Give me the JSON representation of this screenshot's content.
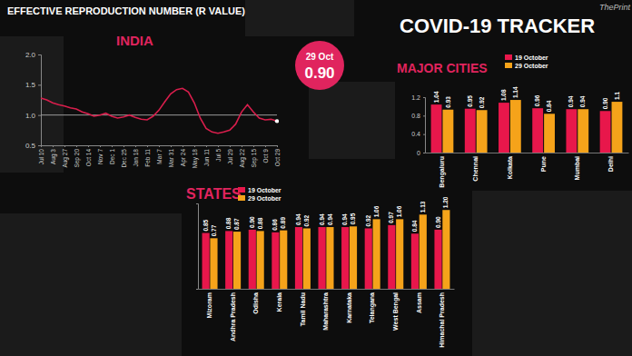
{
  "header": {
    "title": "COVID-19 TRACKER",
    "logo": "ThePrint"
  },
  "chart_data": [
    {
      "type": "line",
      "title": "EFFECTIVE REPRODUCTION NUMBER (R VALUE)",
      "subtitle": "INDIA",
      "categories": [
        "Jul 10",
        null,
        "Aug 3",
        null,
        "Aug 27",
        null,
        "Sep 20",
        null,
        "Oct 14",
        null,
        "Nov 7",
        null,
        "Dec 1",
        null,
        "Dec 25",
        null,
        "Jan 18",
        null,
        "Feb 11",
        null,
        "Mar 7",
        null,
        "Mar 31",
        null,
        "Apr 24",
        null,
        "May 18",
        null,
        "Jun 11",
        null,
        "Jul 5",
        null,
        "Jul 29",
        null,
        "Aug 22",
        null,
        "Sep 15",
        null,
        "Oct 9",
        null,
        "Oct 29"
      ],
      "values": [
        1.28,
        1.25,
        1.2,
        1.17,
        1.15,
        1.12,
        1.1,
        1.05,
        1.02,
        0.98,
        1.0,
        1.03,
        0.98,
        0.95,
        0.97,
        1.0,
        0.96,
        0.93,
        0.92,
        0.98,
        1.08,
        1.22,
        1.35,
        1.42,
        1.44,
        1.38,
        1.2,
        0.95,
        0.78,
        0.72,
        0.7,
        0.72,
        0.75,
        0.85,
        1.05,
        1.17,
        1.05,
        0.95,
        0.92,
        0.93,
        0.9
      ],
      "color": "#d81e4c",
      "ylim": [
        0.5,
        2
      ],
      "yticks": [
        0.5,
        {
          "value": 1,
          "label": "1.0"
        },
        1.5,
        {
          "value": 2,
          "label": "2.0"
        }
      ],
      "threshold": 1,
      "callout": {
        "text": "29 Oct",
        "value": 0.9,
        "label": "0.90"
      },
      "grid": false
    },
    {
      "type": "bar",
      "subtitle": "MAJOR CITIES",
      "categories": [
        "Bengaluru",
        "Chennai",
        "Kolkata",
        "Pune",
        "Mumbai",
        "Delhi"
      ],
      "series": [
        {
          "name": "19 October",
          "color": "#e8174b",
          "values": [
            1.04,
            0.95,
            1.08,
            0.96,
            0.94,
            0.9
          ],
          "value_labels": [
            "1.04",
            "0.95",
            "1.08",
            "0.96",
            "0.94",
            "0.90"
          ]
        },
        {
          "name": "29 October",
          "color": "#f5a31a",
          "values": [
            0.93,
            0.92,
            1.14,
            0.84,
            0.94,
            1.1
          ],
          "value_labels": [
            "0.93",
            "0.92",
            "1.14",
            "0.84",
            "0.94",
            "1.1"
          ]
        }
      ],
      "ylim": [
        0,
        1.2
      ],
      "yticks": [
        0,
        0.4,
        0.8,
        1.2
      ],
      "data_labels": true,
      "legend": "top-right"
    },
    {
      "type": "bar",
      "subtitle": "STATES",
      "categories": [
        "Mizoram",
        "Andhra Pradesh",
        "Odisha",
        "Kerala",
        "Tamil Nadu",
        "Maharashtra",
        "Karnataka",
        "Telangana",
        "West Bengal",
        "Assam",
        "Himachal Pradesh"
      ],
      "series": [
        {
          "name": "19 October",
          "color": "#e8174b",
          "values": [
            0.85,
            0.88,
            0.9,
            0.86,
            0.94,
            0.94,
            0.94,
            0.92,
            0.97,
            0.84,
            0.9
          ],
          "value_labels": [
            "0.85",
            "0.88",
            "0.90",
            "0.86",
            "0.94",
            "0.94",
            "0.94",
            "0.92",
            "0.97",
            "0.84",
            "0.90"
          ]
        },
        {
          "name": "29 October",
          "color": "#f5a31a",
          "values": [
            0.77,
            0.87,
            0.88,
            0.89,
            0.92,
            0.94,
            0.95,
            1.06,
            1.06,
            1.13,
            1.2
          ],
          "value_labels": [
            "0.77",
            "0.87",
            "0.88",
            "0.89",
            "0.92",
            "0.94",
            "0.95",
            "1.06",
            "1.06",
            "1.13",
            "1.20"
          ]
        }
      ],
      "ylim": [
        0,
        1.3
      ],
      "yticks": [],
      "tick_labels": "x",
      "data_labels": true,
      "legend": "top-left"
    }
  ]
}
